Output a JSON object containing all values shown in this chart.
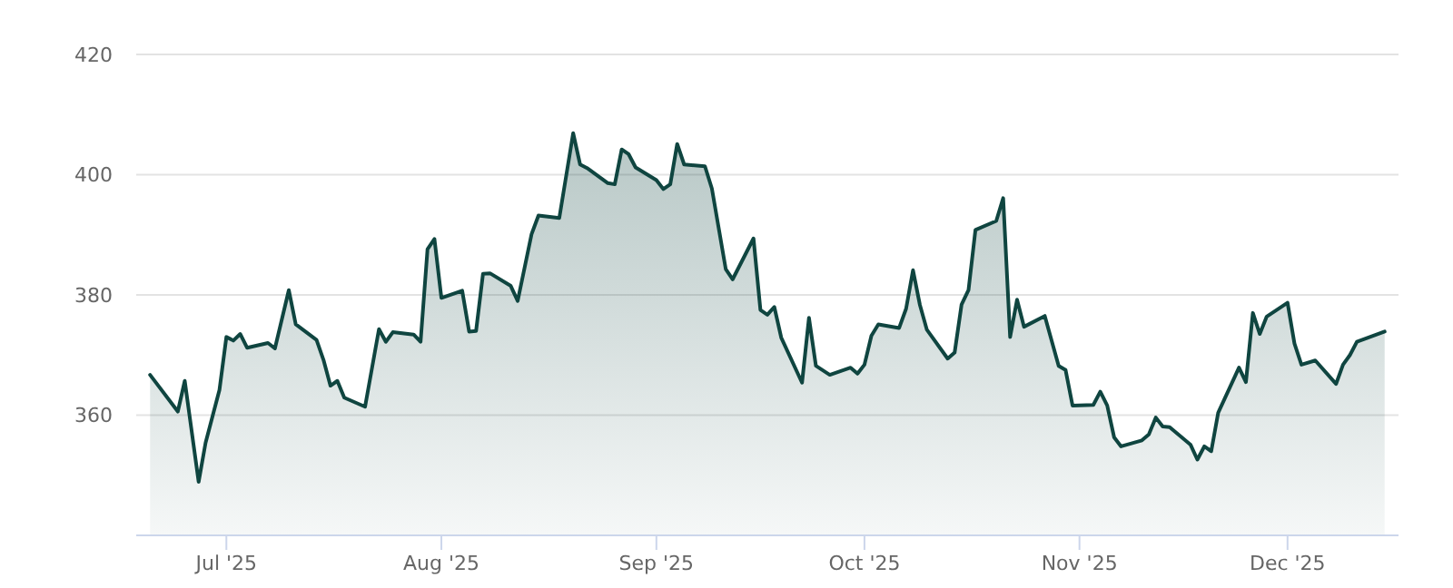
{
  "chart_data": {
    "type": "area",
    "grid": "y",
    "ylim": [
      340,
      420
    ],
    "yticks": [
      360,
      380,
      400,
      420
    ],
    "xlim": [
      "2025-06-18",
      "2025-12-17"
    ],
    "xticks": [
      {
        "value": "2025-07-01",
        "label": "Jul '25"
      },
      {
        "value": "2025-08-01",
        "label": "Aug '25"
      },
      {
        "value": "2025-09-01",
        "label": "Sep '25"
      },
      {
        "value": "2025-10-01",
        "label": "Oct '25"
      },
      {
        "value": "2025-11-01",
        "label": "Nov '25"
      },
      {
        "value": "2025-12-01",
        "label": "Dec '25"
      }
    ],
    "x": [
      "2025-06-20",
      "2025-06-24",
      "2025-06-25",
      "2025-06-27",
      "2025-06-28",
      "2025-06-30",
      "2025-07-01",
      "2025-07-02",
      "2025-07-03",
      "2025-07-04",
      "2025-07-07",
      "2025-07-08",
      "2025-07-10",
      "2025-07-11",
      "2025-07-14",
      "2025-07-15",
      "2025-07-16",
      "2025-07-17",
      "2025-07-18",
      "2025-07-21",
      "2025-07-23",
      "2025-07-24",
      "2025-07-25",
      "2025-07-28",
      "2025-07-29",
      "2025-07-30",
      "2025-07-31",
      "2025-08-01",
      "2025-08-04",
      "2025-08-05",
      "2025-08-06",
      "2025-08-07",
      "2025-08-08",
      "2025-08-11",
      "2025-08-12",
      "2025-08-14",
      "2025-08-15",
      "2025-08-18",
      "2025-08-20",
      "2025-08-21",
      "2025-08-22",
      "2025-08-25",
      "2025-08-26",
      "2025-08-27",
      "2025-08-28",
      "2025-08-29",
      "2025-09-01",
      "2025-09-02",
      "2025-09-03",
      "2025-09-04",
      "2025-09-05",
      "2025-09-08",
      "2025-09-09",
      "2025-09-11",
      "2025-09-12",
      "2025-09-15",
      "2025-09-16",
      "2025-09-17",
      "2025-09-18",
      "2025-09-19",
      "2025-09-22",
      "2025-09-23",
      "2025-09-24",
      "2025-09-26",
      "2025-09-29",
      "2025-09-30",
      "2025-10-01",
      "2025-10-02",
      "2025-10-03",
      "2025-10-06",
      "2025-10-07",
      "2025-10-08",
      "2025-10-09",
      "2025-10-10",
      "2025-10-13",
      "2025-10-14",
      "2025-10-15",
      "2025-10-16",
      "2025-10-17",
      "2025-10-20",
      "2025-10-21",
      "2025-10-22",
      "2025-10-23",
      "2025-10-24",
      "2025-10-27",
      "2025-10-29",
      "2025-10-30",
      "2025-10-31",
      "2025-11-03",
      "2025-11-04",
      "2025-11-05",
      "2025-11-06",
      "2025-11-07",
      "2025-11-10",
      "2025-11-11",
      "2025-11-12",
      "2025-11-13",
      "2025-11-14",
      "2025-11-17",
      "2025-11-18",
      "2025-11-19",
      "2025-11-20",
      "2025-11-21",
      "2025-11-24",
      "2025-11-25",
      "2025-11-26",
      "2025-11-27",
      "2025-11-28",
      "2025-12-01",
      "2025-12-02",
      "2025-12-03",
      "2025-12-05",
      "2025-12-08",
      "2025-12-09",
      "2025-12-10",
      "2025-12-11",
      "2025-12-15"
    ],
    "series": [
      {
        "color": "#0f4540",
        "values": [
          366.7,
          360.6,
          365.7,
          348.9,
          355.4,
          364.2,
          373.0,
          372.4,
          373.5,
          371.2,
          372.0,
          371.1,
          380.8,
          375.1,
          372.5,
          369.2,
          364.9,
          365.7,
          362.9,
          361.4,
          374.3,
          372.2,
          373.8,
          373.4,
          372.2,
          387.6,
          389.3,
          379.5,
          380.7,
          373.9,
          374.0,
          383.5,
          383.6,
          381.5,
          379.0,
          390.1,
          393.2,
          392.8,
          406.9,
          401.7,
          401.1,
          398.6,
          398.4,
          404.2,
          403.4,
          401.2,
          399.1,
          397.6,
          398.4,
          405.1,
          401.7,
          401.4,
          397.7,
          384.3,
          382.6,
          389.4,
          377.5,
          376.7,
          378.0,
          372.9,
          365.4,
          376.2,
          368.2,
          366.7,
          367.9,
          366.9,
          368.4,
          373.2,
          375.1,
          374.5,
          377.7,
          384.1,
          378.3,
          374.2,
          369.4,
          370.4,
          378.4,
          380.8,
          390.8,
          392.3,
          396.1,
          373.0,
          379.2,
          374.7,
          376.5,
          368.2,
          367.5,
          361.6,
          361.7,
          363.9,
          361.6,
          356.3,
          354.8,
          355.8,
          356.8,
          359.6,
          358.1,
          358.0,
          355.1,
          352.6,
          354.8,
          354.0,
          360.4,
          367.9,
          365.5,
          377.0,
          373.5,
          376.4,
          378.7,
          371.9,
          368.4,
          369.1,
          365.2,
          368.4,
          370.0,
          372.2,
          373.9
        ]
      }
    ]
  }
}
